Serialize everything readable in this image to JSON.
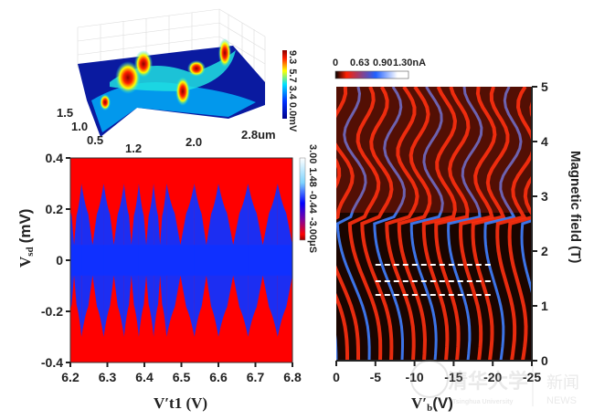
{
  "chart_data": [
    {
      "type": "surface",
      "panel": "inset-3d",
      "x_ticks": [
        "1.2",
        "2.0",
        "2.8um"
      ],
      "y_ticks": [
        "0.5",
        "1.0",
        "1.5"
      ],
      "colorbar": {
        "ticks": [
          "9.3",
          "5.7",
          "3.4",
          "0.0mV"
        ],
        "colormap": [
          "#00008b",
          "#0000ff",
          "#00ffff",
          "#ffff00",
          "#ff0000",
          "#8b0000"
        ]
      }
    },
    {
      "type": "heatmap",
      "panel": "left",
      "xlabel": "V′t1 (V)",
      "xlabel_main": "V′",
      "xlabel_sub": "t1",
      "xlabel_unit": "(V)",
      "ylabel_main": "V",
      "ylabel_sub": "sd",
      "ylabel_unit": "(mV)",
      "xlim": [
        6.2,
        6.8
      ],
      "ylim": [
        -0.4,
        0.4
      ],
      "x_ticks": [
        "6.2",
        "6.3",
        "6.4",
        "6.5",
        "6.6",
        "6.7",
        "6.8"
      ],
      "y_ticks": [
        "0.4",
        "0.2",
        "0",
        "-0.2",
        "-0.4"
      ],
      "degeneracy_points": [
        6.23,
        6.29,
        6.345,
        6.385,
        6.425,
        6.46,
        6.535,
        6.6,
        6.68,
        6.76
      ],
      "colors": {
        "background": "#ff0000",
        "diamond": "#1030ff"
      },
      "colorbar": {
        "ticks": [
          "3.00",
          "1.48",
          "-0.44",
          "-3.00μS"
        ],
        "colormap": [
          "#ffffff",
          "#7fd4ff",
          "#0000ff",
          "#8000a0",
          "#ff0000",
          "#8b0000"
        ]
      }
    },
    {
      "type": "heatmap",
      "panel": "right",
      "xlabel_main": "V′",
      "xlabel_sub": "b",
      "xlabel_unit": "(V)",
      "ylabel": "Magnetic field (T)",
      "xlim": [
        0,
        -25
      ],
      "ylim": [
        0,
        5
      ],
      "x_ticks": [
        "0",
        "-5",
        "-10",
        "-15",
        "-20",
        "-25"
      ],
      "y_ticks": [
        "0",
        "1",
        "2",
        "3",
        "4",
        "5"
      ],
      "dashed_lines": [
        {
          "B": 1.75,
          "x_from": -5,
          "x_to": -20
        },
        {
          "B": 1.45,
          "x_from": -5,
          "x_to": -20
        },
        {
          "B": 1.2,
          "x_from": -5,
          "x_to": -20
        }
      ],
      "colors": {
        "low": "#000000",
        "mid": "#ff3010",
        "high": "#4080ff",
        "max": "#ffffff"
      },
      "colorbar": {
        "ticks": [
          "0",
          "0.63",
          "0.90",
          "1.30nA"
        ],
        "colormap": [
          "#000000",
          "#ff2000",
          "#2060ff",
          "#ffffff"
        ]
      }
    }
  ],
  "watermark": {
    "text_cn": "清华大学",
    "text_en": "Tsinghua University",
    "news_cn": "新闻",
    "news_en": "NEWS"
  }
}
